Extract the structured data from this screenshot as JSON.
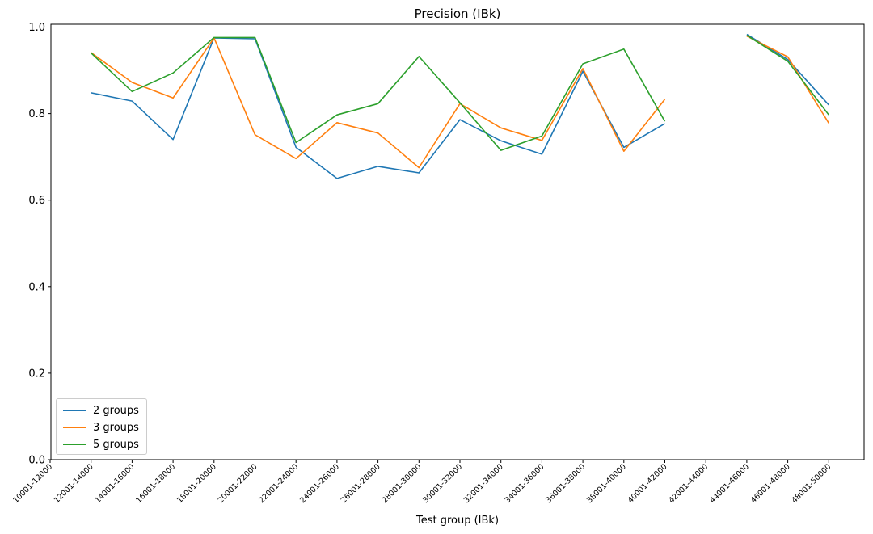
{
  "chart_data": {
    "type": "line",
    "title": "Precision (IBk)",
    "xlabel": "Test group (IBk)",
    "ylabel": "",
    "categories": [
      "10001-12000",
      "12001-14000",
      "14001-16000",
      "16001-18000",
      "18001-20000",
      "20001-22000",
      "22001-24000",
      "24001-26000",
      "26001-28000",
      "28001-30000",
      "30001-32000",
      "32001-34000",
      "34001-36000",
      "36001-38000",
      "38001-40000",
      "40001-42000",
      "42001-44000",
      "44001-46000",
      "46001-48000",
      "48001-50000"
    ],
    "ylim": [
      0,
      1.0
    ],
    "yticks": [
      "0.0",
      "0.2",
      "0.4",
      "0.6",
      "0.8",
      "1.0"
    ],
    "grid": false,
    "legend_position": "lower-left",
    "series": [
      {
        "name": "2 groups",
        "color": "#1f77b4",
        "values": [
          null,
          0.848,
          0.829,
          0.74,
          0.975,
          0.973,
          0.722,
          0.65,
          0.678,
          0.663,
          0.786,
          0.737,
          0.706,
          0.898,
          0.722,
          0.777,
          null,
          0.983,
          0.925,
          0.82
        ]
      },
      {
        "name": "3 groups",
        "color": "#ff7f0e",
        "values": [
          null,
          0.941,
          0.872,
          0.836,
          0.975,
          0.751,
          0.696,
          0.779,
          0.755,
          0.675,
          0.823,
          0.767,
          0.738,
          0.904,
          0.713,
          0.833,
          null,
          0.979,
          0.931,
          0.778
        ]
      },
      {
        "name": "5 groups",
        "color": "#2ca02c",
        "values": [
          null,
          0.94,
          0.851,
          0.894,
          0.976,
          0.976,
          0.733,
          0.797,
          0.823,
          0.932,
          0.825,
          0.715,
          0.748,
          0.915,
          0.949,
          0.782,
          null,
          0.981,
          0.921,
          0.797
        ]
      }
    ]
  }
}
